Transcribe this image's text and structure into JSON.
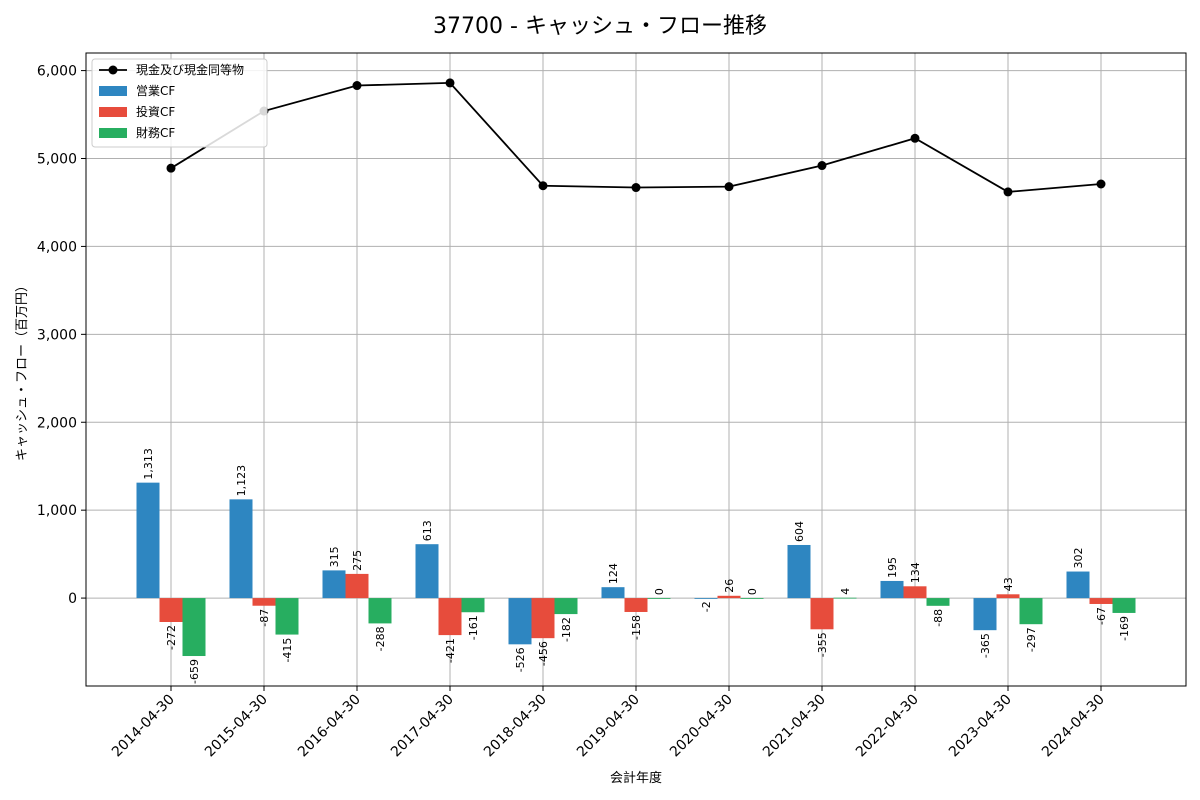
{
  "chart_data": {
    "type": "bar+line",
    "title": "37700 - キャッシュ・フロー推移",
    "xlabel": "会計年度",
    "ylabel": "キャッシュ・フロー（百万円）",
    "ylim": [
      -1000,
      6200
    ],
    "yticks": [
      0,
      1000,
      2000,
      3000,
      4000,
      5000,
      6000
    ],
    "ytick_labels": [
      "0",
      "1,000",
      "2,000",
      "3,000",
      "4,000",
      "5,000",
      "6,000"
    ],
    "grid": true,
    "legend_position": "top-left",
    "categories": [
      "2014-04-30",
      "2015-04-30",
      "2016-04-30",
      "2017-04-30",
      "2018-04-30",
      "2019-04-30",
      "2020-04-30",
      "2021-04-30",
      "2022-04-30",
      "2023-04-30",
      "2024-04-30"
    ],
    "line": {
      "name": "現金及び現金同等物",
      "color": "#000000",
      "values": [
        4890,
        5540,
        5830,
        5860,
        4690,
        4670,
        4680,
        4920,
        5230,
        4620,
        4710
      ]
    },
    "series": [
      {
        "name": "営業CF",
        "color": "#2e86c1",
        "values": [
          1313,
          1123,
          315,
          613,
          -526,
          124,
          -2,
          604,
          195,
          -365,
          302
        ],
        "labels": [
          "1,313",
          "1,123",
          "315",
          "613",
          "-526",
          "124",
          "-2",
          "604",
          "195",
          "-365",
          "302"
        ]
      },
      {
        "name": "投資CF",
        "color": "#e74c3c",
        "values": [
          -272,
          -87,
          275,
          -421,
          -456,
          -158,
          26,
          -355,
          134,
          43,
          -67
        ],
        "labels": [
          "-272",
          "-87",
          "275",
          "-421",
          "-456",
          "-158",
          "26",
          "-355",
          "134",
          "43",
          "-67"
        ]
      },
      {
        "name": "財務CF",
        "color": "#27ae60",
        "values": [
          -659,
          -415,
          -288,
          -161,
          -182,
          0,
          0,
          4,
          -88,
          -297,
          -169
        ],
        "labels": [
          "-659",
          "-415",
          "-288",
          "-161",
          "-182",
          "0",
          "0",
          "4",
          "-88",
          "-297",
          "-169"
        ]
      }
    ]
  }
}
